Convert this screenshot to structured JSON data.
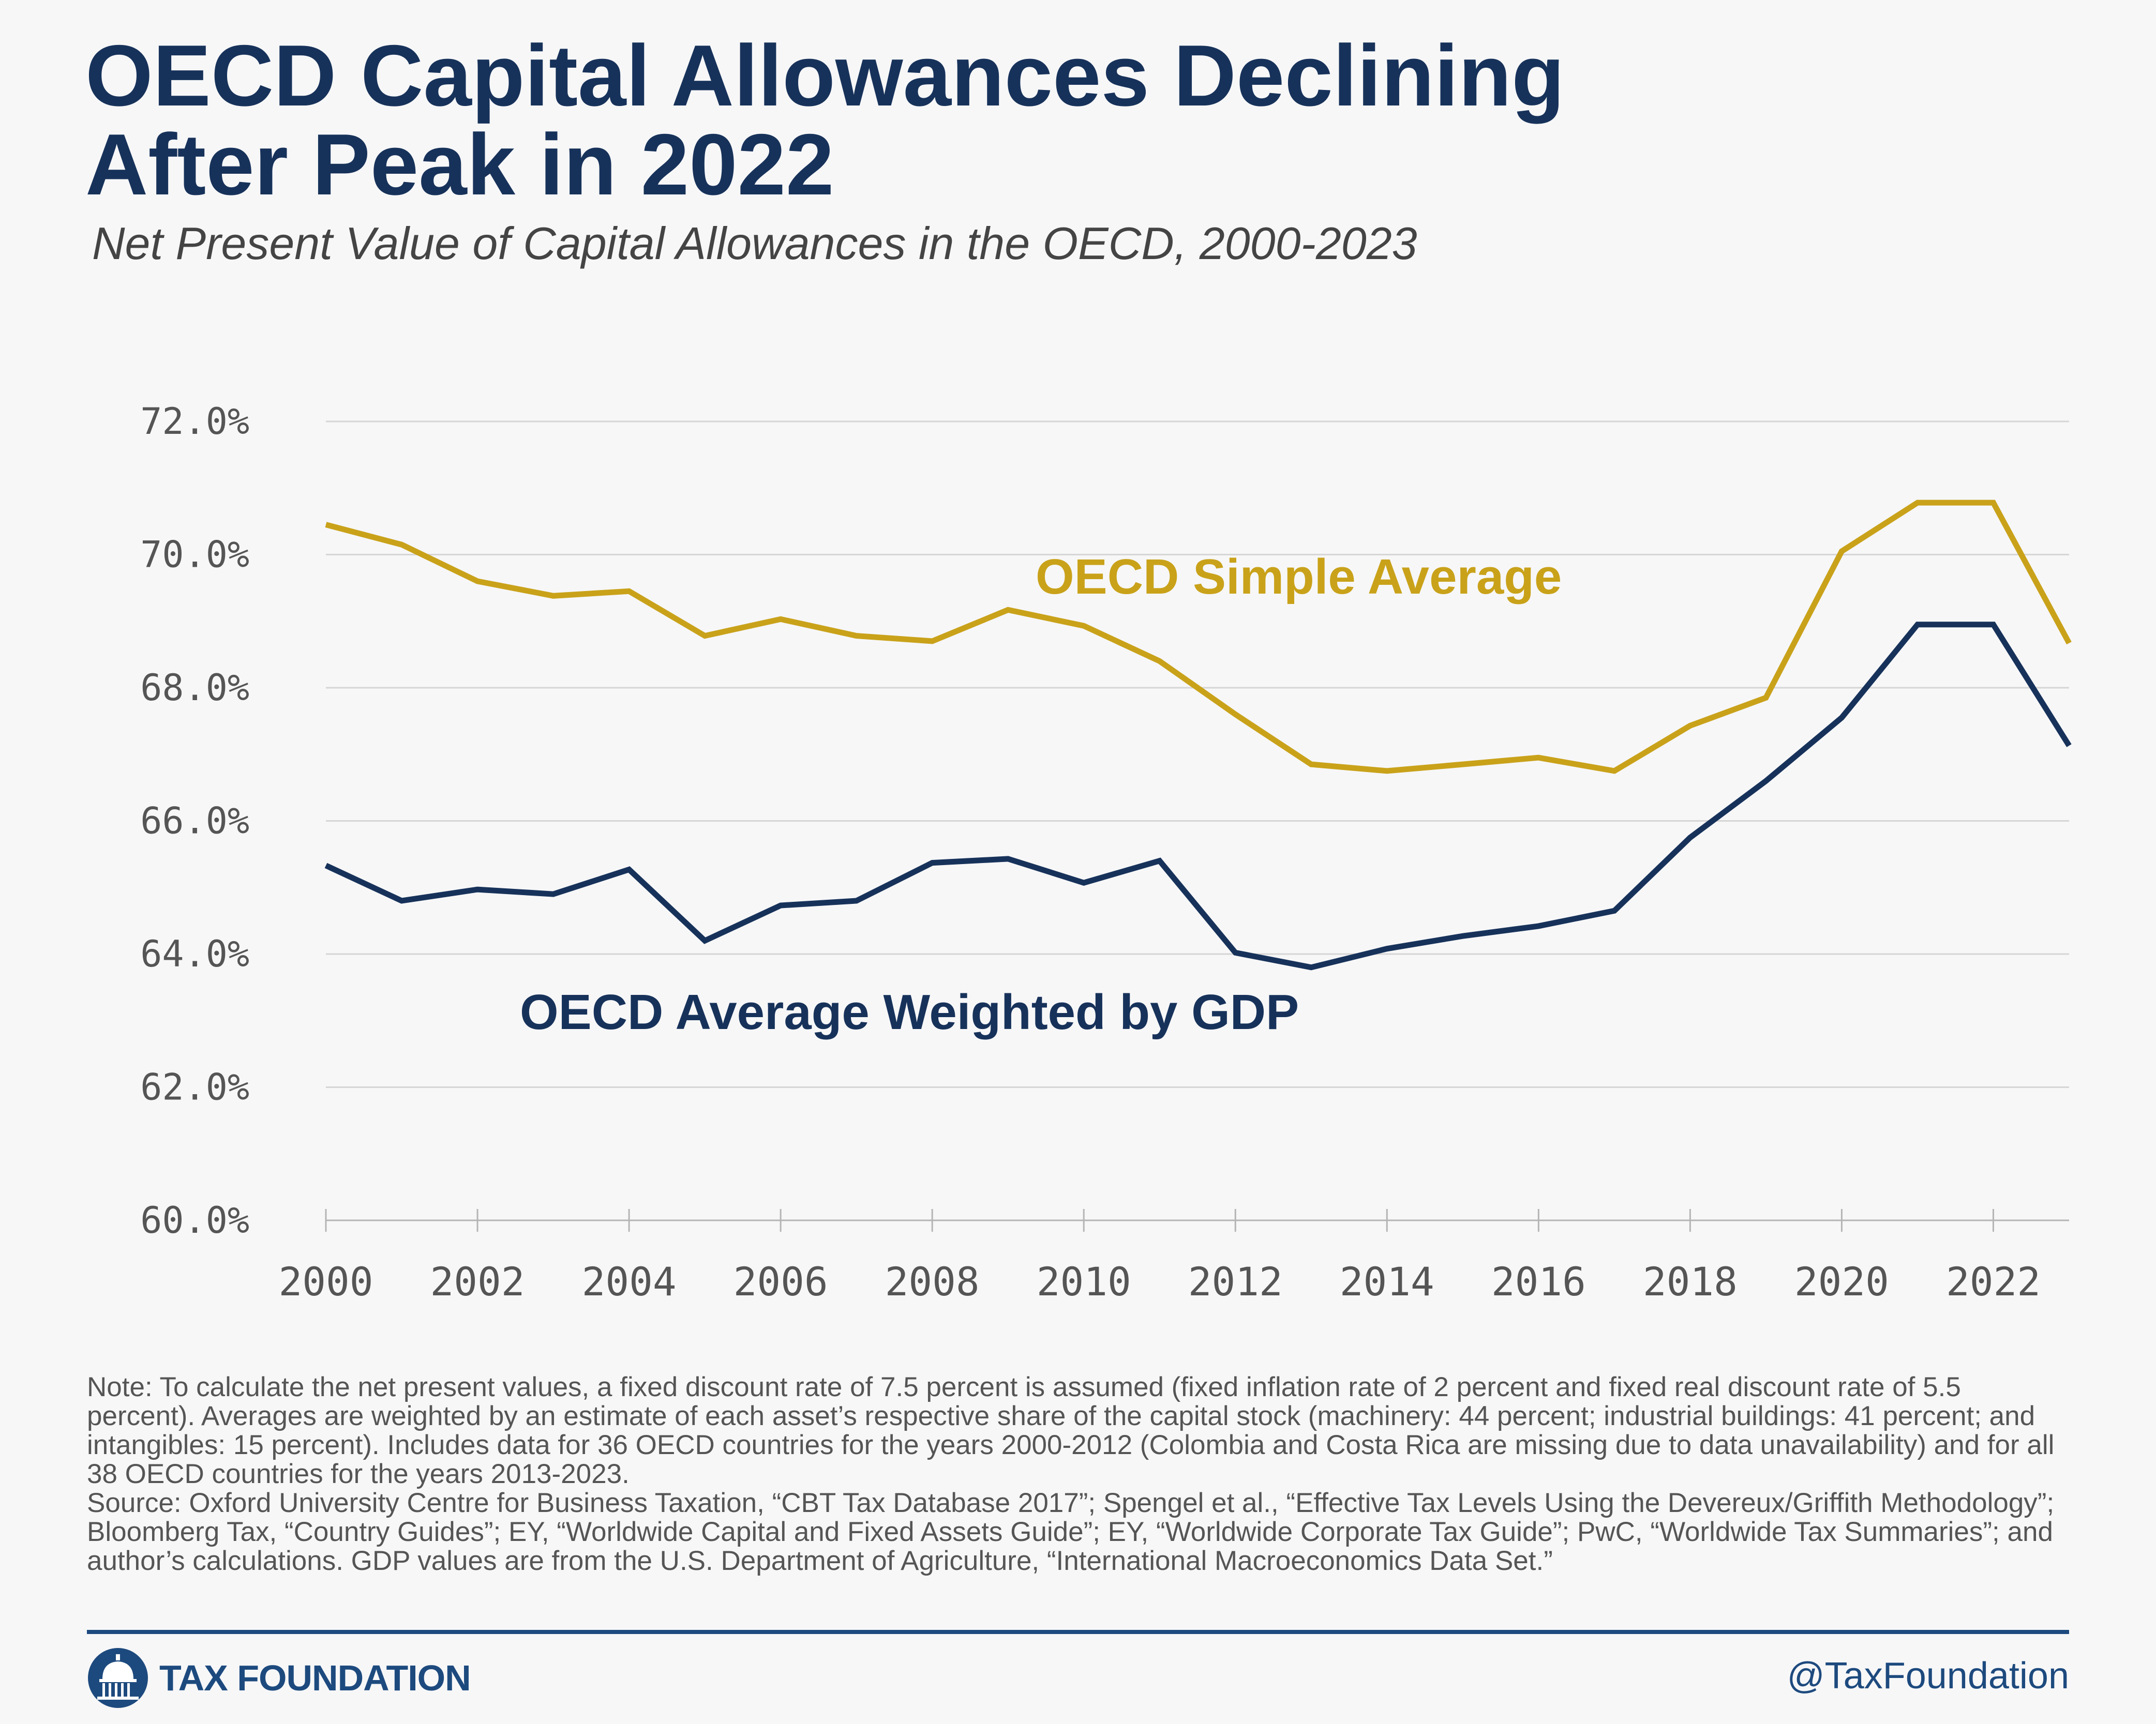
{
  "title_lines": [
    "OECD Capital Allowances Declining",
    "After Peak in 2022"
  ],
  "subtitle": "Net Present Value of Capital Allowances in the OECD, 2000-2023",
  "chart_data": {
    "type": "line",
    "x": [
      2000,
      2001,
      2002,
      2003,
      2004,
      2005,
      2006,
      2007,
      2008,
      2009,
      2010,
      2011,
      2012,
      2013,
      2014,
      2015,
      2016,
      2017,
      2018,
      2019,
      2020,
      2021,
      2022,
      2023
    ],
    "series": [
      {
        "name": "OECD Simple Average",
        "color": "#c9a21a",
        "values": [
          70.45,
          70.15,
          69.6,
          69.38,
          69.45,
          68.78,
          69.03,
          68.78,
          68.7,
          69.17,
          68.93,
          68.4,
          67.6,
          66.85,
          66.75,
          66.85,
          66.95,
          66.75,
          67.43,
          67.85,
          70.05,
          70.78,
          70.78,
          68.67
        ]
      },
      {
        "name": "OECD Average Weighted by GDP",
        "color": "#17325a",
        "values": [
          65.33,
          64.8,
          64.97,
          64.9,
          65.27,
          64.2,
          64.73,
          64.8,
          65.37,
          65.43,
          65.07,
          65.4,
          64.02,
          63.8,
          64.08,
          64.27,
          64.42,
          64.65,
          65.75,
          66.6,
          67.55,
          68.95,
          68.95,
          67.13
        ]
      }
    ],
    "xticks": [
      "2000",
      "2002",
      "2004",
      "2006",
      "2008",
      "2010",
      "2012",
      "2014",
      "2016",
      "2018",
      "2020",
      "2022"
    ],
    "yticks": [
      "60.0%",
      "62.0%",
      "64.0%",
      "66.0%",
      "68.0%",
      "70.0%",
      "72.0%"
    ],
    "ylim": [
      60,
      72
    ],
    "xlim": [
      2000,
      2023
    ],
    "grid": true,
    "legend": "inline labels"
  },
  "note": "Note: To calculate the net present values, a fixed discount rate of 7.5 percent is assumed (fixed inflation rate of 2 percent and fixed real discount rate of 5.5 percent). Averages are weighted by an estimate of each asset’s respective share of the capital stock (machinery: 44 percent; industrial buildings: 41 percent; and intangibles: 15 percent). Includes data for 36 OECD countries for the years 2000-2012 (Colombia and Costa Rica are missing due to data unavailability) and for all 38 OECD countries for the years 2013-2023.",
  "source": "Source: Oxford University Centre for Business Taxation, “CBT Tax Database 2017”; Spengel et al., “Effective Tax Levels Using the Devereux/Griffith Methodology”; Bloomberg Tax, “Country Guides”; EY, “Worldwide Capital and Fixed Assets Guide”; EY, “Worldwide Corporate Tax Guide”; PwC, “Worldwide Tax Summaries”; and author’s calculations. GDP values are from the U.S. Department of Agriculture, “International Macroeconomics Data Set.”",
  "footer": {
    "brand": "TAX FOUNDATION",
    "handle": "@TaxFoundation"
  }
}
